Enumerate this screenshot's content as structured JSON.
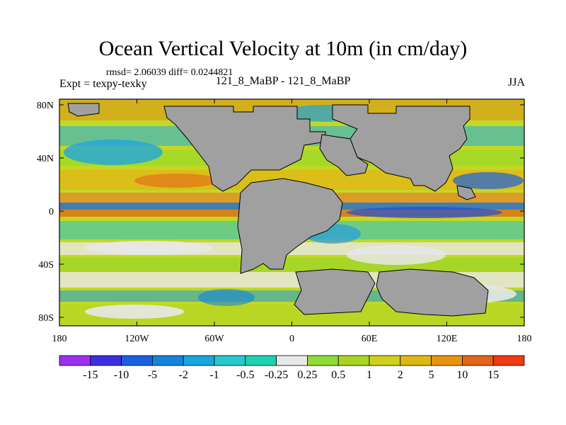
{
  "title": "Ocean Vertical Velocity at 10m (in cm/day)",
  "stats": "rmsd= 2.06039 diff= 0.0244821",
  "expt_label": "Expt = texpy-texky",
  "case_label": "121_8_MaBP - 121_8_MaBP",
  "season": "JJA",
  "lon_ticks": [
    "180",
    "120W",
    "60W",
    "0",
    "60E",
    "120E",
    "180"
  ],
  "lat_ticks": [
    "80N",
    "40N",
    "0",
    "40S",
    "80S"
  ],
  "colorbar": {
    "colors": [
      "#9b30f0",
      "#3c2ee0",
      "#1a5fe0",
      "#1584d8",
      "#1aa6dc",
      "#28c8cc",
      "#1ed2b0",
      "#e8e8e8",
      "#8edc34",
      "#a9d424",
      "#cfd01c",
      "#ddb812",
      "#e59412",
      "#e0641a",
      "#f03a12"
    ],
    "labels": [
      "-15",
      "-10",
      "-5",
      "-2",
      "-1",
      "-0.5",
      "-0.25",
      "0.25",
      "0.5",
      "1",
      "2",
      "5",
      "10",
      "15"
    ]
  },
  "land_color": "#a0a0a0"
}
